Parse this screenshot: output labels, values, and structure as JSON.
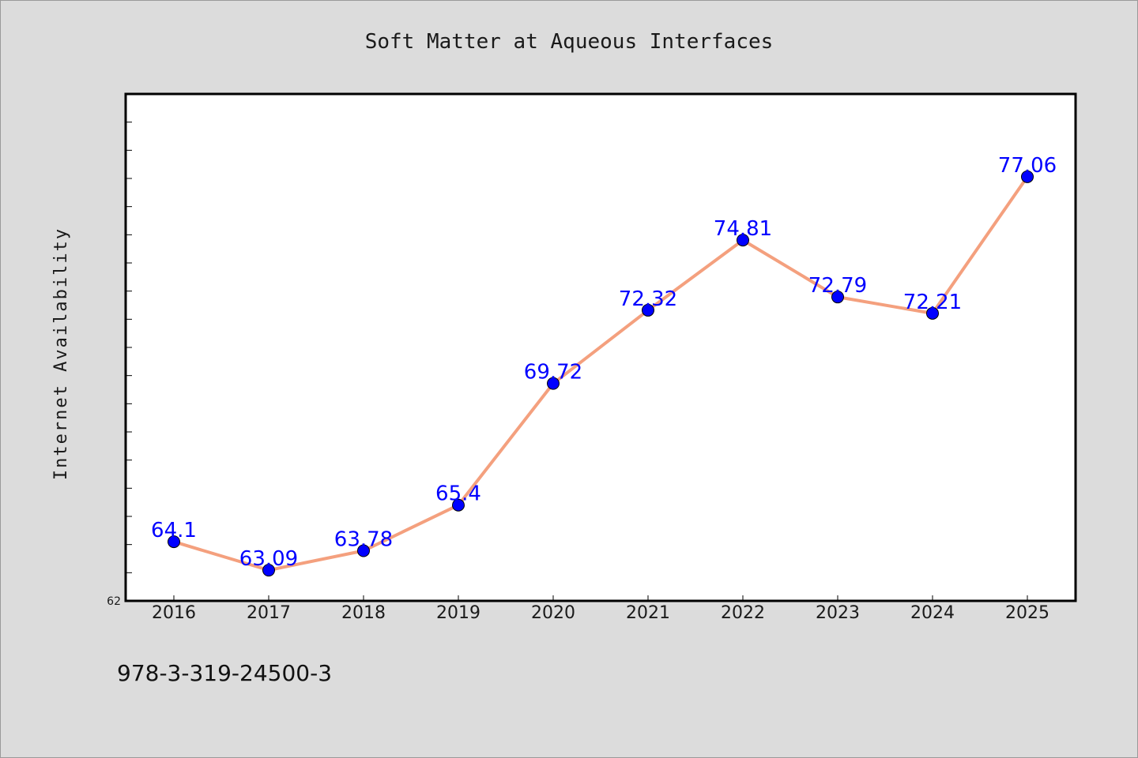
{
  "chart_data": {
    "type": "line",
    "title": "Soft Matter at Aqueous Interfaces",
    "xlabel": "",
    "ylabel": "Internet Availability",
    "categories": [
      "2016",
      "2017",
      "2018",
      "2019",
      "2020",
      "2021",
      "2022",
      "2023",
      "2024",
      "2025"
    ],
    "series": [
      {
        "values": [
          64.1,
          63.09,
          63.78,
          65.4,
          69.72,
          72.32,
          74.81,
          72.79,
          72.21,
          77.06
        ],
        "labels": [
          "64.1",
          "63.09",
          "63.78",
          "65.4",
          "69.72",
          "72.32",
          "74.81",
          "72.79",
          "72.21",
          "77.06"
        ],
        "line_color": "#f4a07e",
        "marker_color": "#0000ff",
        "label_color": "#0000ff"
      }
    ],
    "ylim": [
      62,
      80
    ],
    "ytick_labels": [
      "62"
    ],
    "grid": false,
    "legend": "none"
  },
  "footer": {
    "isbn": "978-3-319-24500-3"
  },
  "colors": {
    "background": "#dcdcdc",
    "plot_background": "#ffffff",
    "axis": "#000000"
  }
}
